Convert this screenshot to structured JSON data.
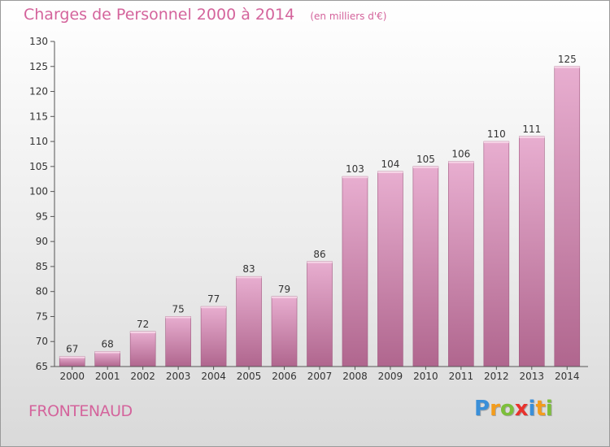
{
  "header": {
    "title": "Charges de Personnel 2000 à 2014",
    "subtitle": "(en milliers d'€)"
  },
  "footer": {
    "commune": "FRONTENAUD",
    "brand_letters": [
      {
        "char": "P",
        "color": "#3a8fd8"
      },
      {
        "char": "r",
        "color": "#f39c1c"
      },
      {
        "char": "o",
        "color": "#7cbf3a"
      },
      {
        "char": "x",
        "color": "#e8322d"
      },
      {
        "char": "i",
        "color": "#3a8fd8"
      },
      {
        "char": "t",
        "color": "#f39c1c"
      },
      {
        "char": "i",
        "color": "#7cbf3a"
      }
    ]
  },
  "chart_data": {
    "type": "bar",
    "categories": [
      "2000",
      "2001",
      "2002",
      "2003",
      "2004",
      "2005",
      "2006",
      "2007",
      "2008",
      "2009",
      "2010",
      "2011",
      "2012",
      "2013",
      "2014"
    ],
    "values": [
      67,
      68,
      72,
      75,
      77,
      83,
      79,
      86,
      103,
      104,
      105,
      106,
      110,
      111,
      125
    ],
    "ylim": [
      65,
      130
    ],
    "yticks": [
      65,
      70,
      75,
      80,
      85,
      90,
      95,
      100,
      105,
      110,
      115,
      120,
      125,
      130
    ],
    "grid": false,
    "bar_color_top": "#e8aed0",
    "bar_color_bottom": "#b0668e",
    "text_color": "#333333"
  }
}
